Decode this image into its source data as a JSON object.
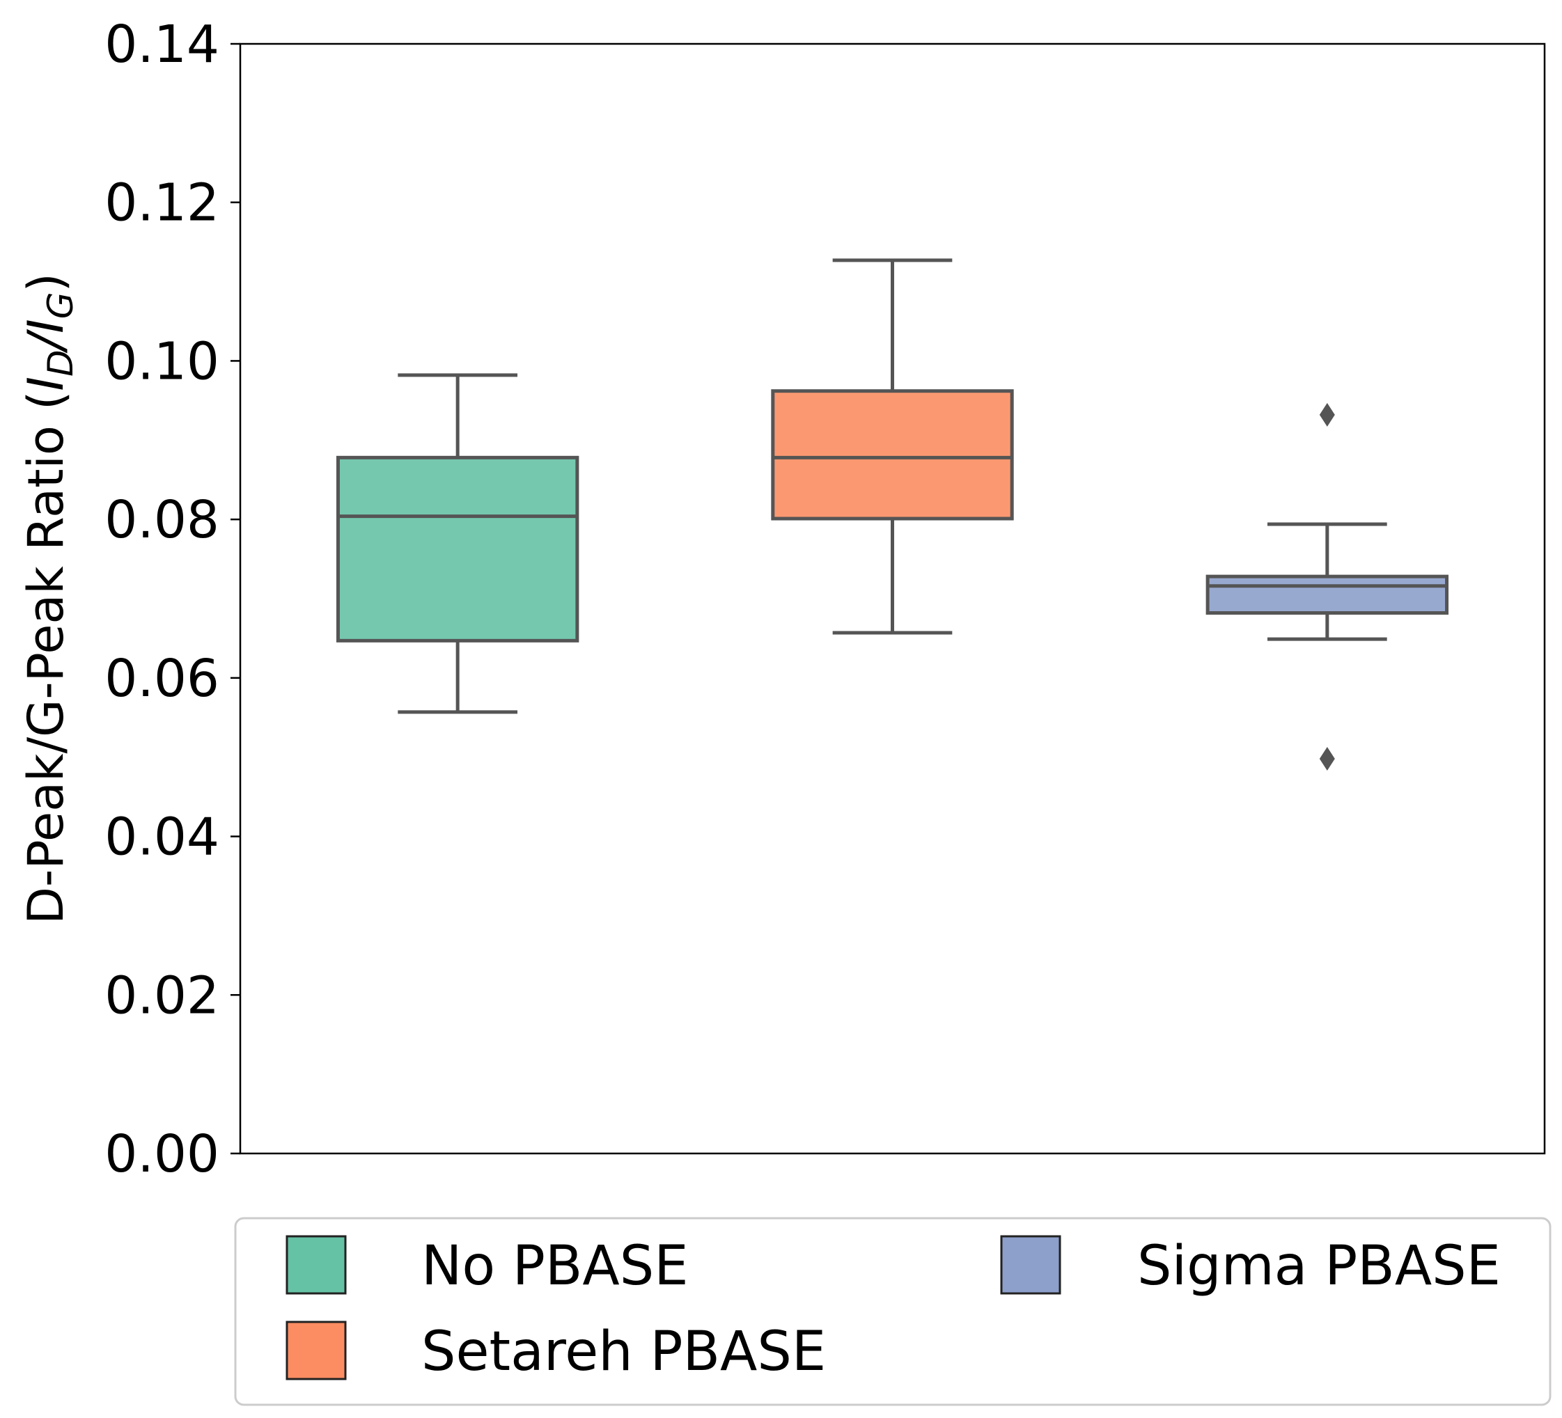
{
  "chart_data": {
    "type": "box",
    "ylabel": {
      "main": "D-Peak/G-Peak Ratio (",
      "i1": "I",
      "sub1": "D",
      "slash": "/",
      "i2": "I",
      "sub2": "G",
      "close": ")"
    },
    "ylim": [
      0.0,
      0.14
    ],
    "yticks": [
      {
        "value": 0.0,
        "label": "0.00"
      },
      {
        "value": 0.02,
        "label": "0.02"
      },
      {
        "value": 0.04,
        "label": "0.04"
      },
      {
        "value": 0.06,
        "label": "0.06"
      },
      {
        "value": 0.08,
        "label": "0.08"
      },
      {
        "value": 0.1,
        "label": "0.10"
      },
      {
        "value": 0.12,
        "label": "0.12"
      },
      {
        "value": 0.14,
        "label": "0.14"
      }
    ],
    "grid": false,
    "legend_position": "bottom",
    "series": [
      {
        "name": "No PBASE",
        "color": "#66c2a5",
        "whisker_low": 0.0557,
        "q1": 0.0647,
        "median": 0.0804,
        "q3": 0.0878,
        "whisker_high": 0.0982,
        "outliers": []
      },
      {
        "name": "Setareh PBASE",
        "color": "#fc8d62",
        "whisker_low": 0.0657,
        "q1": 0.0801,
        "median": 0.0878,
        "q3": 0.0962,
        "whisker_high": 0.1127,
        "outliers": []
      },
      {
        "name": "Sigma PBASE",
        "color": "#8da0cb",
        "whisker_low": 0.0649,
        "q1": 0.0682,
        "median": 0.0716,
        "q3": 0.0728,
        "whisker_high": 0.0794,
        "outliers": [
          0.0932,
          0.0498
        ]
      }
    ]
  }
}
